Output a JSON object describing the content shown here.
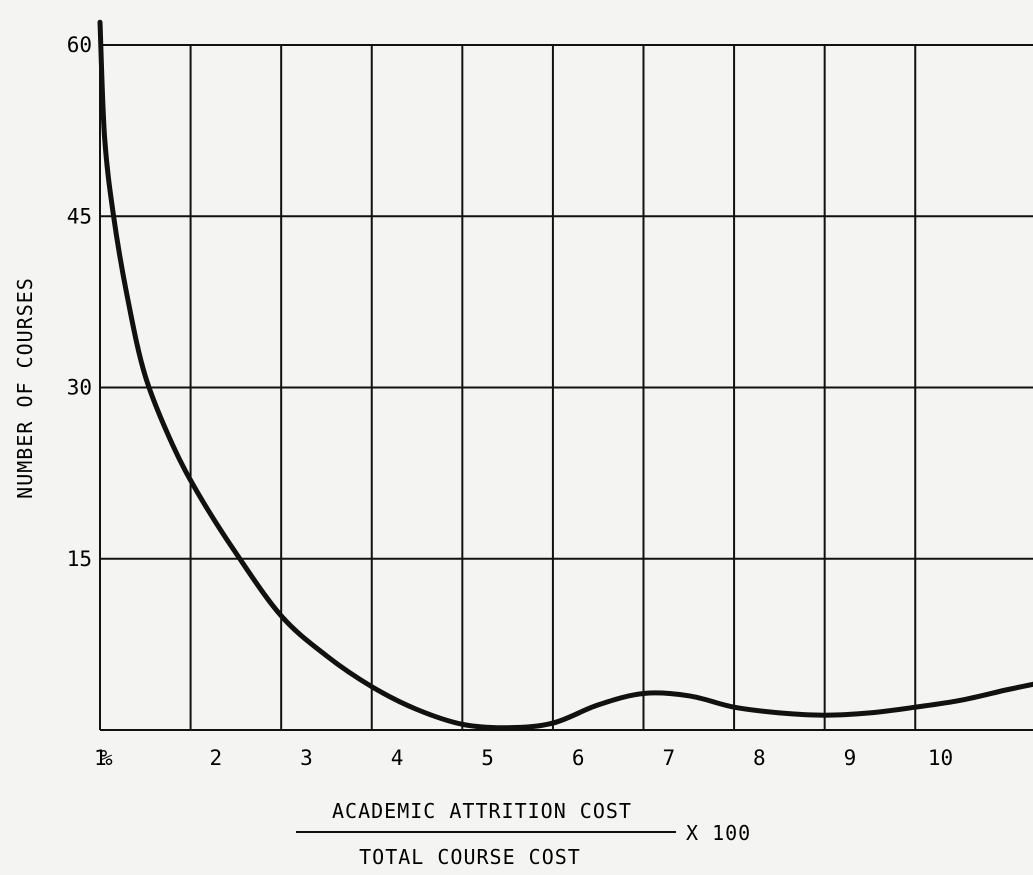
{
  "chart_data": {
    "type": "line",
    "title": "",
    "ylabel": "NUMBER OF COURSES",
    "xlabel_numerator": "ACADEMIC ATTRITION COST",
    "xlabel_denominator": "TOTAL COURSE COST",
    "xlabel_multiplier": "X 100",
    "x_unit_label": "%",
    "xlim": [
      0.5,
      10.8
    ],
    "ylim": [
      0,
      60
    ],
    "grid": true,
    "x_ticks": [
      1,
      2,
      3,
      4,
      5,
      6,
      7,
      8,
      9,
      10
    ],
    "x_tick_labels": [
      "1",
      "2",
      "3",
      "4",
      "5",
      "6",
      "7",
      "8",
      "9",
      "10"
    ],
    "y_ticks": [
      15,
      30,
      45,
      60
    ],
    "y_tick_labels": [
      "15",
      "30",
      "45",
      "60"
    ],
    "series": [
      {
        "x": [
          0.5,
          0.55,
          0.65,
          0.8,
          1.0,
          1.3,
          1.6,
          2.0,
          2.5,
          3.0,
          3.5,
          4.0,
          4.5,
          5.0,
          5.5,
          6.0,
          6.5,
          7.0,
          7.5,
          8.0,
          8.5,
          9.0,
          9.5,
          10.0,
          10.5,
          10.8
        ],
        "y": [
          62,
          52,
          45,
          38,
          31,
          25,
          20.5,
          15.5,
          10,
          6.5,
          3.8,
          1.8,
          0.5,
          0.2,
          0.6,
          2.2,
          3.2,
          3.0,
          2.0,
          1.5,
          1.3,
          1.5,
          2.0,
          2.6,
          3.5,
          4.0
        ]
      }
    ]
  }
}
